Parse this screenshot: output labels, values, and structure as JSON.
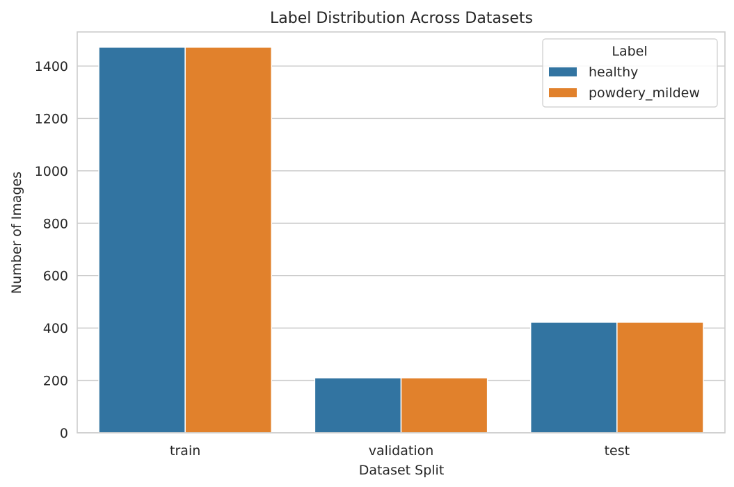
{
  "chart_data": {
    "type": "bar",
    "title": "Label Distribution Across Datasets",
    "xlabel": "Dataset Split",
    "ylabel": "Number of Images",
    "categories": [
      "train",
      "validation",
      "test"
    ],
    "series": [
      {
        "name": "healthy",
        "color": "#3274a1",
        "values": [
          1472,
          210,
          422
        ]
      },
      {
        "name": "powdery_mildew",
        "color": "#e1812c",
        "values": [
          1472,
          210,
          422
        ]
      }
    ],
    "ylim": [
      0,
      1530
    ],
    "yticks": [
      0,
      200,
      400,
      600,
      800,
      1000,
      1200,
      1400
    ],
    "grid": true,
    "legend": {
      "title": "Label",
      "position": "top-right"
    }
  }
}
